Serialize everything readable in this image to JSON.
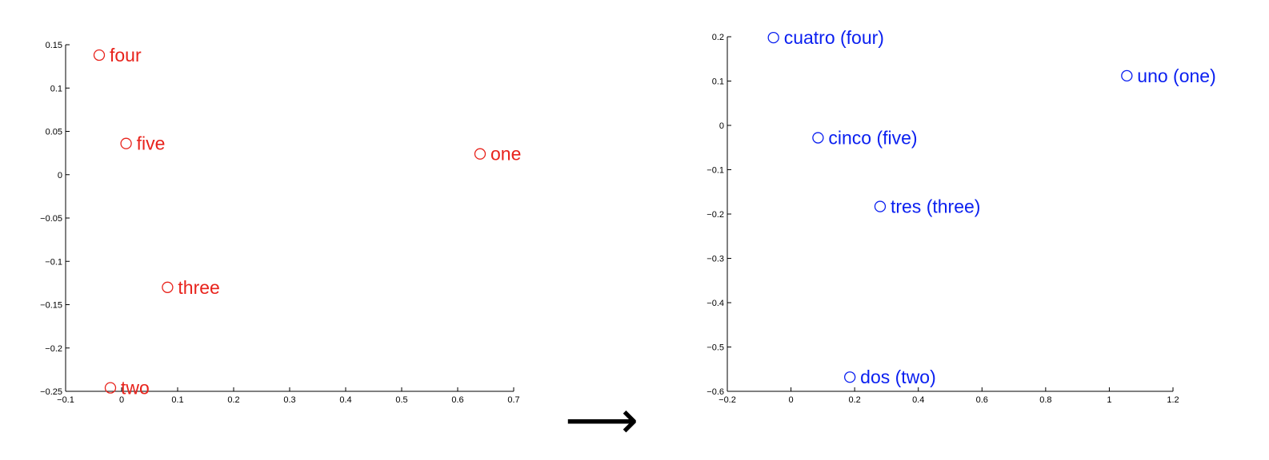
{
  "chart_data": [
    {
      "type": "scatter",
      "title": "",
      "xlabel": "",
      "ylabel": "",
      "xlim": [
        -0.1,
        0.7
      ],
      "ylim": [
        -0.25,
        0.15
      ],
      "xticks": [
        "−0.1",
        "0",
        "0.1",
        "0.2",
        "0.3",
        "0.4",
        "0.5",
        "0.6",
        "0.7"
      ],
      "yticks": [
        "−0.25",
        "−0.2",
        "−0.15",
        "−0.1",
        "−0.05",
        "0",
        "0.05",
        "0.1",
        "0.15"
      ],
      "grid": false,
      "marker": "open-circle",
      "color": "#e8231c",
      "points": [
        {
          "label": "four",
          "x": -0.04,
          "y": 0.138
        },
        {
          "label": "five",
          "x": 0.008,
          "y": 0.036
        },
        {
          "label": "one",
          "x": 0.64,
          "y": 0.024
        },
        {
          "label": "three",
          "x": 0.082,
          "y": -0.13
        },
        {
          "label": "two",
          "x": -0.02,
          "y": -0.246
        }
      ]
    },
    {
      "type": "scatter",
      "title": "",
      "xlabel": "",
      "ylabel": "",
      "xlim": [
        -0.2,
        1.2
      ],
      "ylim": [
        -0.6,
        0.2
      ],
      "xticks": [
        "−0.2",
        "0",
        "0.2",
        "0.4",
        "0.6",
        "0.8",
        "1",
        "1.2"
      ],
      "yticks": [
        "−0.6",
        "−0.5",
        "−0.4",
        "−0.3",
        "−0.2",
        "−0.1",
        "0",
        "0.1",
        "0.2"
      ],
      "grid": false,
      "marker": "open-circle",
      "color": "#0a1ff0",
      "points": [
        {
          "label": "cuatro (four)",
          "x": -0.055,
          "y": 0.198
        },
        {
          "label": "uno (one)",
          "x": 1.055,
          "y": 0.112
        },
        {
          "label": "cinco (five)",
          "x": 0.085,
          "y": -0.028
        },
        {
          "label": "tres (three)",
          "x": 0.28,
          "y": -0.183
        },
        {
          "label": "dos (two)",
          "x": 0.185,
          "y": -0.568
        }
      ]
    }
  ],
  "arrow": {
    "glyph": "⟶",
    "icon": "right-arrow-icon"
  }
}
